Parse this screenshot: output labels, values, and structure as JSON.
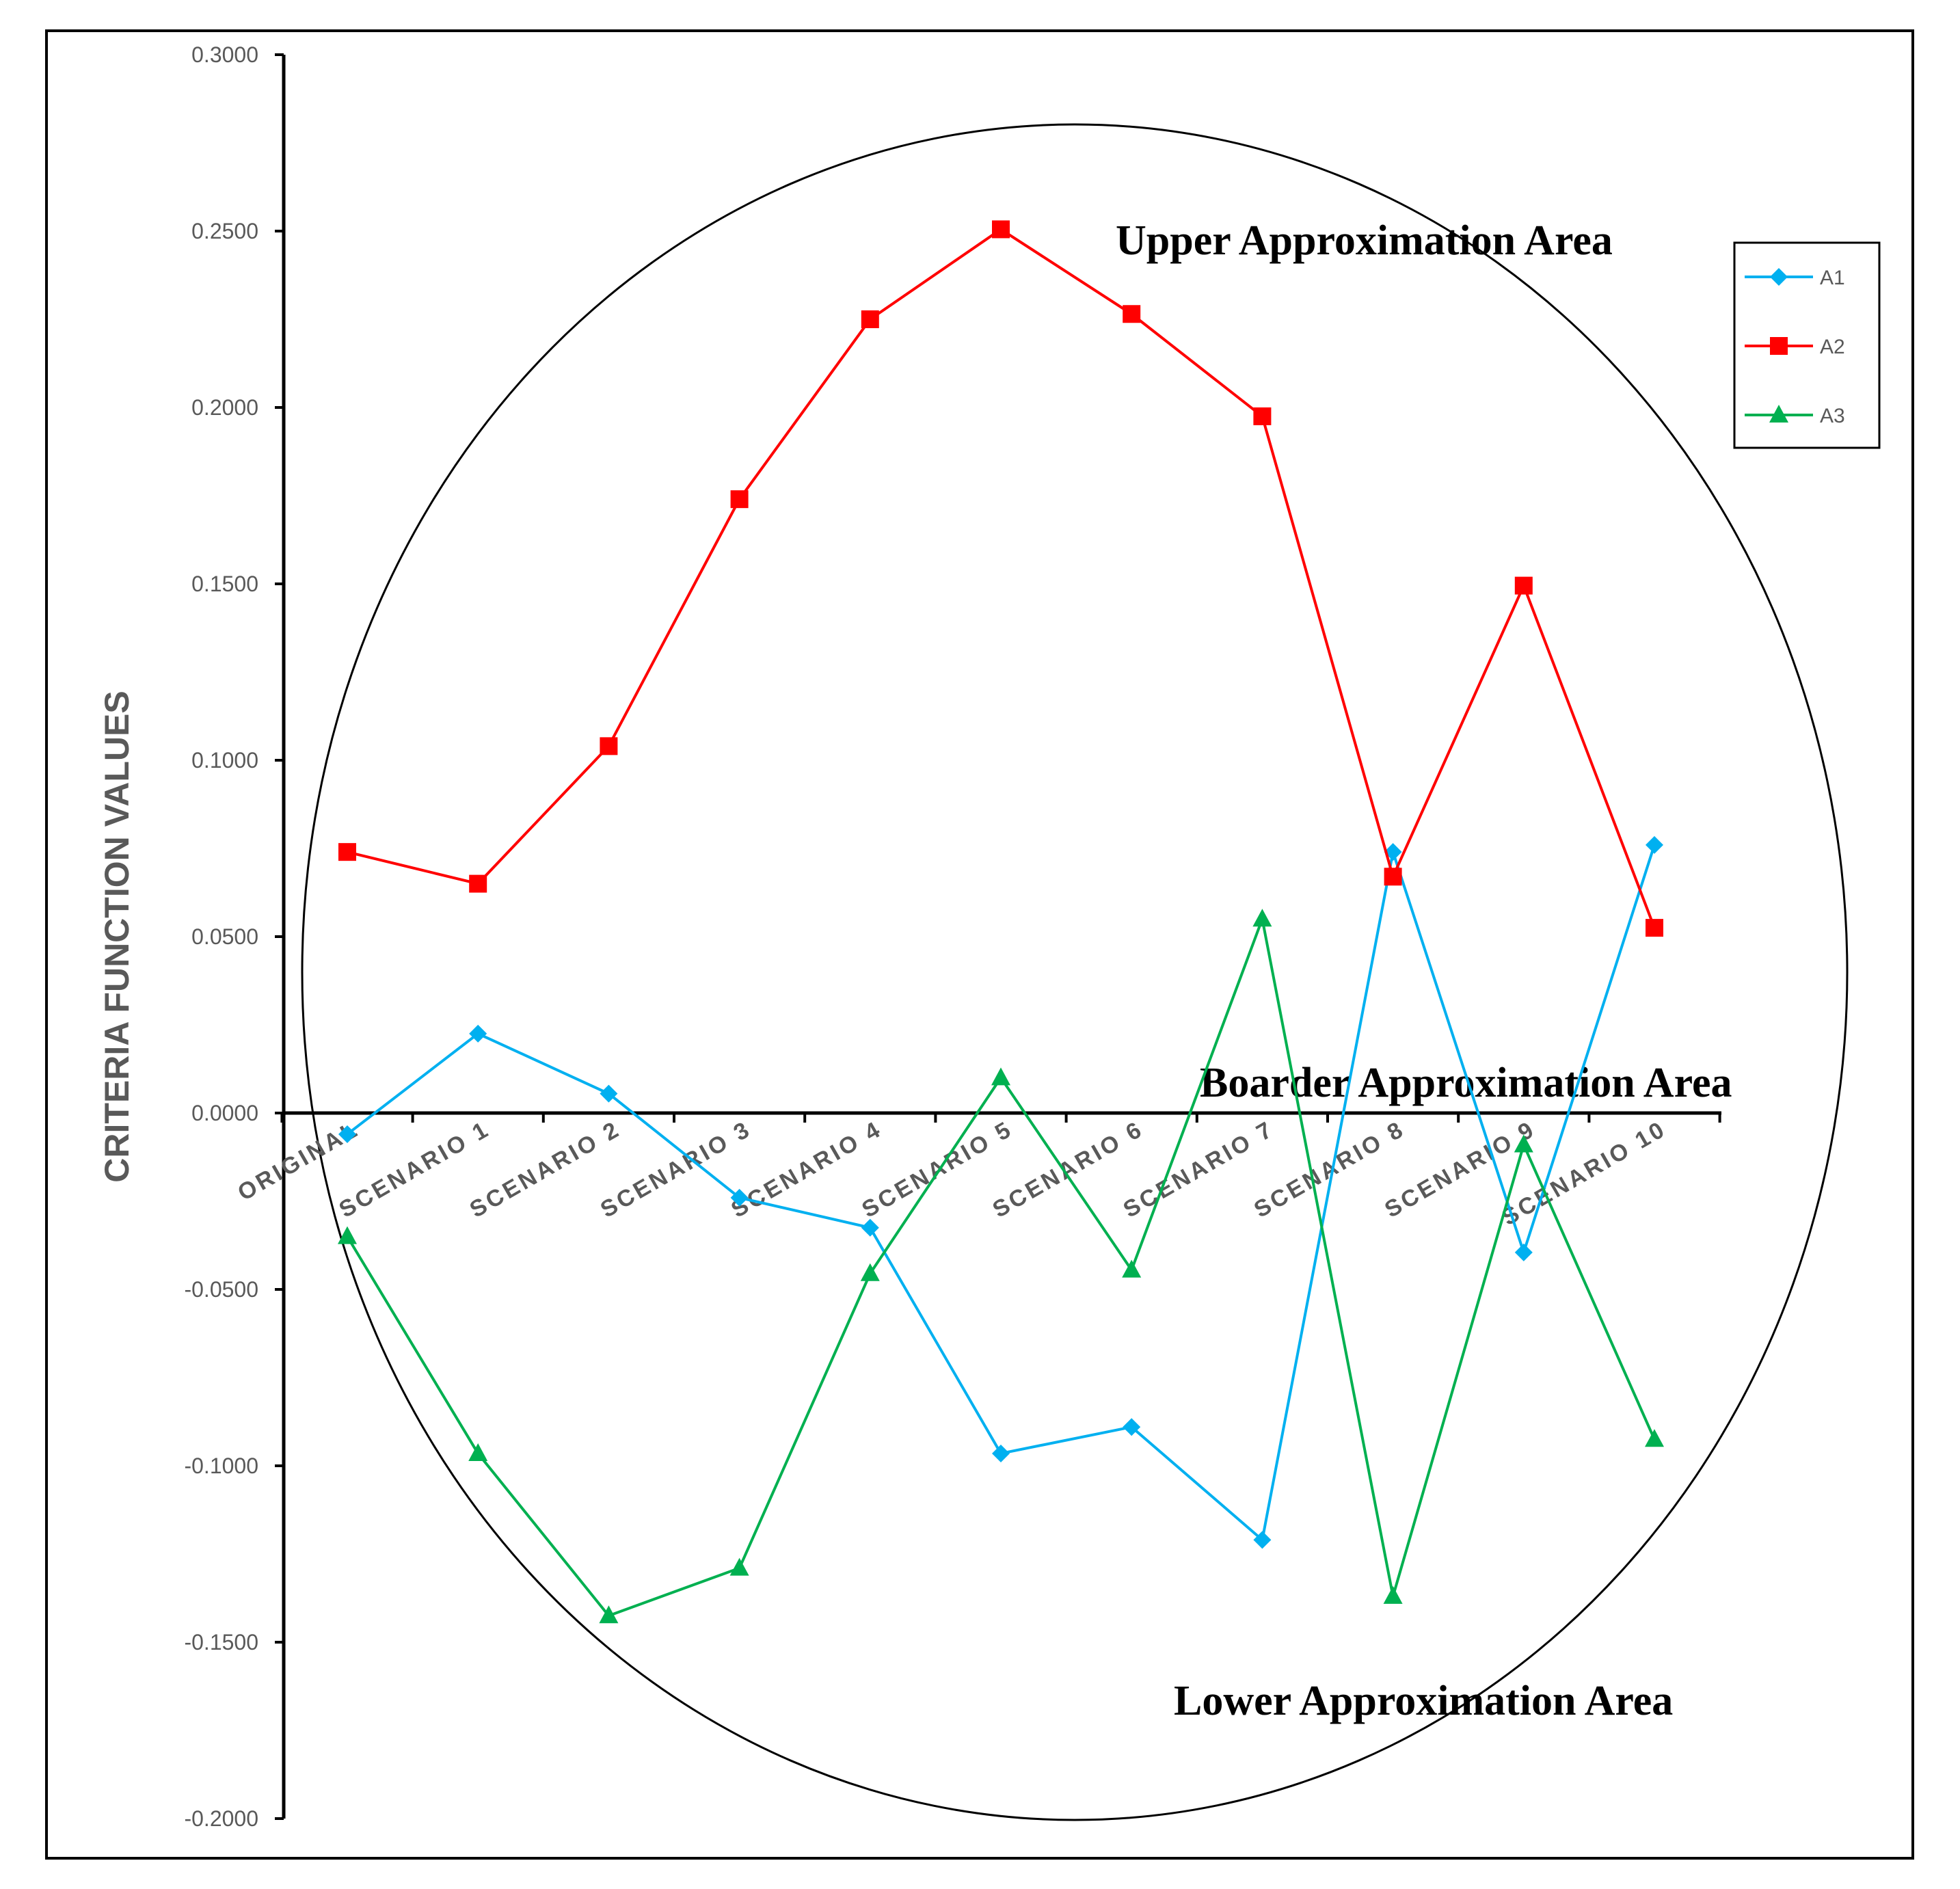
{
  "chart_data": {
    "type": "line",
    "title": "",
    "xlabel": "",
    "ylabel": "CRITERIA FUNCTION VALUES",
    "ylim": [
      -0.2,
      0.3
    ],
    "yticks": [
      "0.3000",
      "0.2500",
      "0.2000",
      "0.1500",
      "0.1000",
      "0.0500",
      "0.0000",
      "-0.0500",
      "-0.1000",
      "-0.1500",
      "-0.2000"
    ],
    "categories": [
      "ORIGINAL",
      "SCENARIO 1",
      "SCENARIO 2",
      "SCENARIO 3",
      "SCENARIO 4",
      "SCENARIO 5",
      "SCENARIO 6",
      "SCENARIO 7",
      "SCENARIO 8",
      "SCENARIO 9",
      "SCENARIO 10"
    ],
    "series": [
      {
        "name": "A1",
        "color": "#00b0f0",
        "marker": "diamond",
        "values": [
          -0.006,
          0.0225,
          0.0055,
          -0.024,
          -0.0325,
          -0.0965,
          -0.089,
          -0.121,
          0.074,
          -0.0395,
          0.076
        ]
      },
      {
        "name": "A2",
        "color": "#ff0000",
        "marker": "square",
        "values": [
          0.074,
          0.065,
          0.104,
          0.174,
          0.225,
          0.2505,
          0.2265,
          0.1975,
          0.067,
          0.1495,
          0.0525
        ]
      },
      {
        "name": "A3",
        "color": "#00b050",
        "marker": "triangle",
        "values": [
          -0.035,
          -0.0965,
          -0.1425,
          -0.129,
          -0.0455,
          0.01,
          -0.0445,
          0.055,
          -0.137,
          -0.009,
          -0.0925
        ]
      }
    ],
    "annotations": [
      "Upper Approximation Area",
      "Boarder Approximation Area",
      "Lower Approximation Area"
    ],
    "legend_position": "top-right",
    "grid": false
  }
}
